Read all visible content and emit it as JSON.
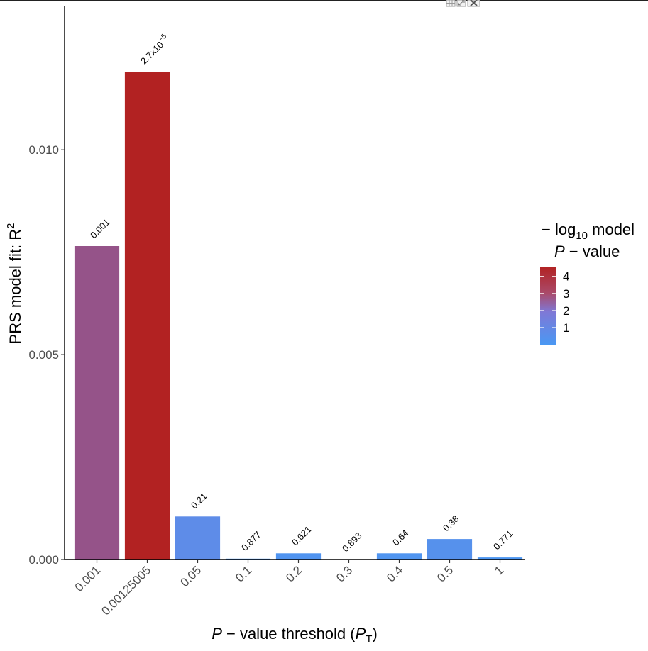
{
  "window": {
    "icons": [
      "grid-icon",
      "expand-icon",
      "close-icon"
    ]
  },
  "chart_data": {
    "type": "bar",
    "categories": [
      "0.001",
      "0.00125005",
      "0.05",
      "0.1",
      "0.2",
      "0.3",
      "0.4",
      "0.5",
      "1"
    ],
    "values": [
      0.00765,
      0.0119,
      0.00105,
      2e-05,
      0.00015,
      0.0,
      0.00015,
      0.0005,
      5e-05
    ],
    "p_labels": [
      "0.001",
      "2.7x10^-5",
      "0.21",
      "0.877",
      "0.621",
      "0.893",
      "0.64",
      "0.38",
      "0.771"
    ],
    "p_label_parts": [
      {
        "base": "0.001",
        "exp": ""
      },
      {
        "base": "2.7x10",
        "exp": "−5"
      },
      {
        "base": "0.21",
        "exp": ""
      },
      {
        "base": "0.877",
        "exp": ""
      },
      {
        "base": "0.621",
        "exp": ""
      },
      {
        "base": "0.893",
        "exp": ""
      },
      {
        "base": "0.64",
        "exp": ""
      },
      {
        "base": "0.38",
        "exp": ""
      },
      {
        "base": "0.771",
        "exp": ""
      }
    ],
    "neg_log10_p": [
      3.0,
      4.57,
      0.68,
      0.06,
      0.21,
      0.05,
      0.19,
      0.42,
      0.11
    ],
    "ylim": [
      0,
      0.0135
    ],
    "yticks": [
      0.0,
      0.005,
      0.01
    ],
    "ytick_labels": [
      "0.000",
      "0.005",
      "0.010"
    ],
    "xlabel": {
      "pre": "P",
      "mid": " − value threshold (",
      "sub_base": "P",
      "sub": "T",
      "post": ")"
    },
    "ylabel": {
      "text": "PRS model fit:  R",
      "sup": "2"
    },
    "legend": {
      "title_line1": {
        "pre": "− log",
        "sub": "10",
        "post": " model"
      },
      "title_line2": {
        "pre": "P",
        "post": " − value"
      },
      "range": [
        0,
        4.57
      ],
      "ticks": [
        1,
        2,
        3,
        4
      ],
      "tick_labels": [
        "1",
        "2",
        "3",
        "4"
      ],
      "position": "right"
    },
    "colors": {
      "low": "#4a98f3",
      "mid": "#7f78d6",
      "high": "#b22222"
    },
    "grid": false
  }
}
